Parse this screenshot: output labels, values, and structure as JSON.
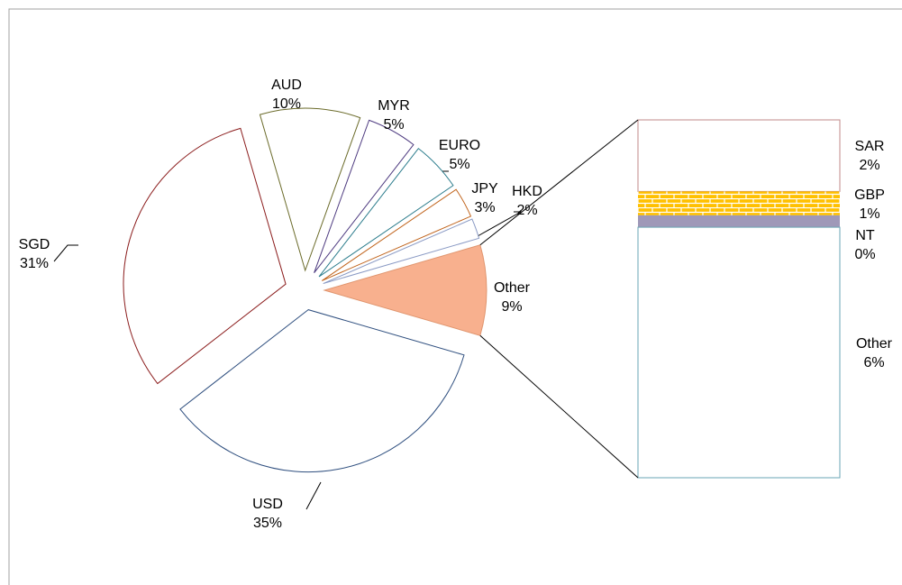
{
  "chart_data": {
    "type": "pie",
    "categories": [
      "USD",
      "SGD",
      "AUD",
      "MYR",
      "EURO",
      "JPY",
      "HKD",
      "Other"
    ],
    "values": [
      35,
      31,
      10,
      5,
      5,
      3,
      2,
      9
    ],
    "value_labels": [
      "35%",
      "31%",
      "10%",
      "5%",
      "5%",
      "3%",
      "2%",
      "9%"
    ],
    "colors": [
      "#2f4f7f",
      "#8b1c1c",
      "#6b6b2a",
      "#4e3b80",
      "#2b7c8c",
      "#c0631b",
      "#8a9ac4",
      "#e0956e"
    ],
    "secondary": {
      "type": "bar",
      "categories": [
        "SAR",
        "GBP",
        "NT",
        "Other"
      ],
      "values": [
        1.8,
        0.6,
        0.3,
        6.3
      ],
      "value_labels": [
        "2%",
        "1%",
        "0%",
        "6%"
      ],
      "colors": [
        "#c08a8a",
        "#ffc000",
        "#9f98b8",
        "#6aa5b5"
      ]
    }
  }
}
